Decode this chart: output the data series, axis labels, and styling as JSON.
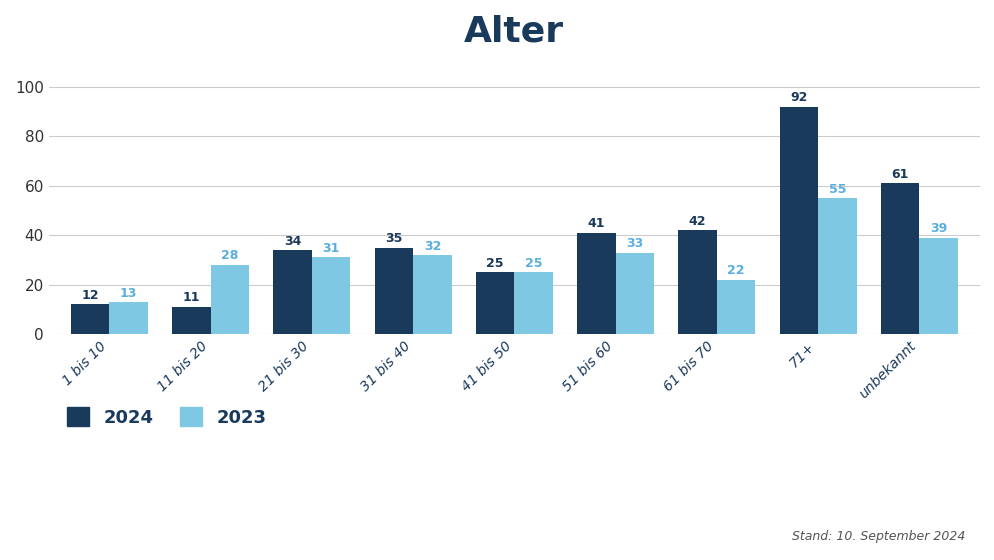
{
  "title": "Alter",
  "categories": [
    "1 bis 10",
    "11 bis 20",
    "21 bis 30",
    "31 bis 40",
    "41 bis 50",
    "51 bis 60",
    "61 bis 70",
    "71+",
    "unbekannt"
  ],
  "values_2024": [
    12,
    11,
    34,
    35,
    25,
    41,
    42,
    92,
    61
  ],
  "values_2023": [
    13,
    28,
    31,
    32,
    25,
    33,
    22,
    55,
    39
  ],
  "color_2024": "#1a3a5c",
  "color_2023": "#7ec8e3",
  "background_color": "#ffffff",
  "ylabel": "",
  "ylim": [
    0,
    108
  ],
  "yticks": [
    0,
    20,
    40,
    60,
    80,
    100
  ],
  "bar_width": 0.38,
  "label_2024": "2024",
  "label_2023": "2023",
  "footnote": "Stand: 10. September 2024",
  "title_color": "#1a3a5c",
  "grid_color": "#cccccc",
  "value_label_color_2024": "#1a3a5c",
  "value_label_color_2023": "#5aafe0"
}
